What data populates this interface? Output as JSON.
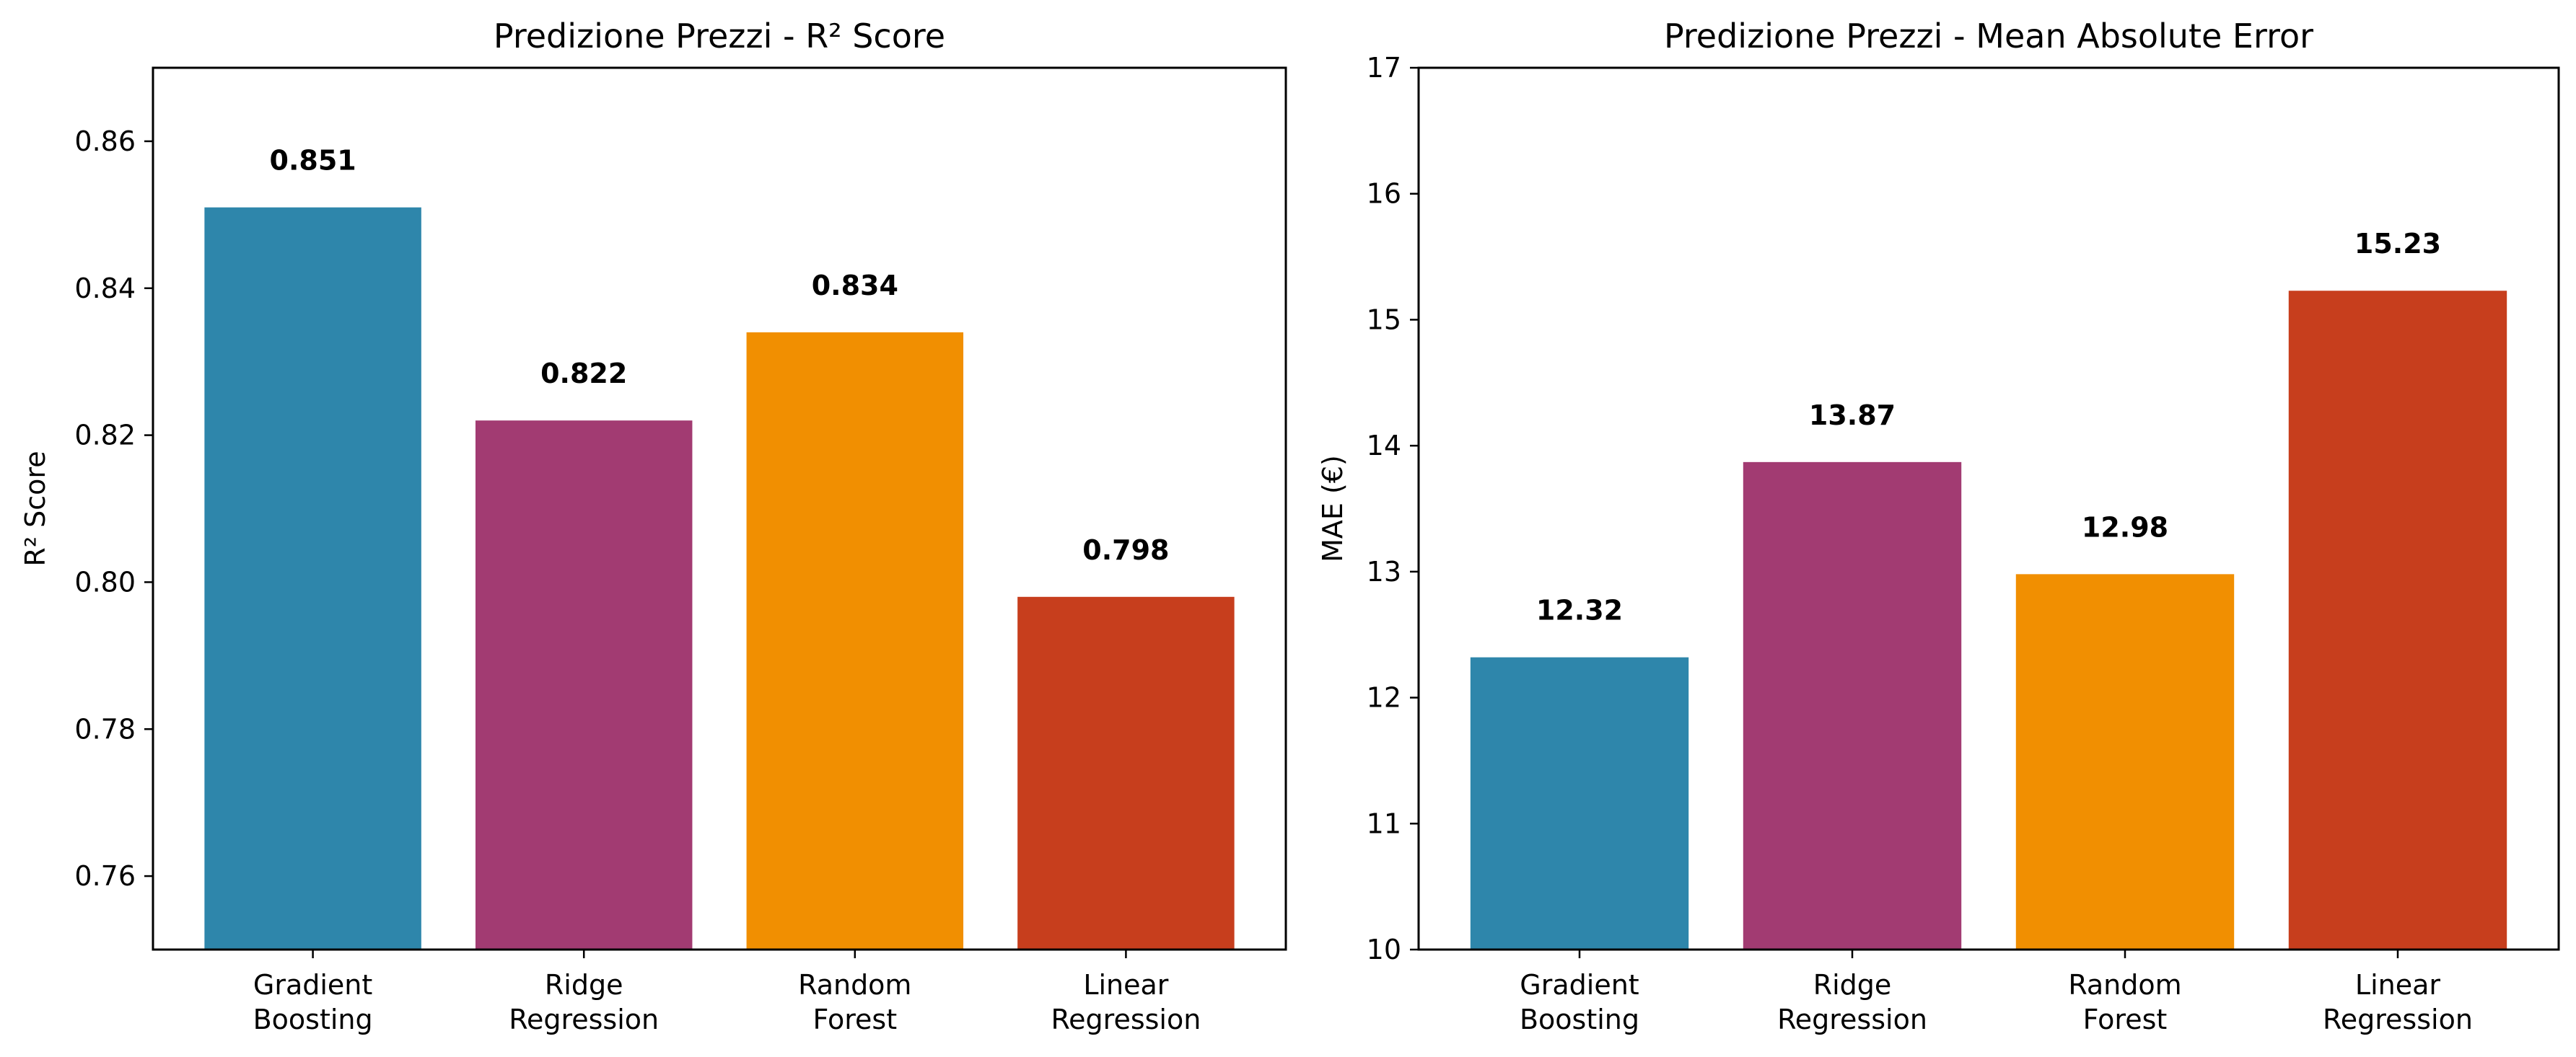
{
  "chart_data": [
    {
      "type": "bar",
      "title": "Predizione Prezzi - R² Score",
      "xlabel": "",
      "ylabel": "R² Score",
      "categories": [
        [
          "Gradient",
          "Boosting"
        ],
        [
          "Ridge",
          "Regression"
        ],
        [
          "Random",
          "Forest"
        ],
        [
          "Linear",
          "Regression"
        ]
      ],
      "values": [
        0.851,
        0.822,
        0.834,
        0.798
      ],
      "value_labels": [
        "0.851",
        "0.822",
        "0.834",
        "0.798"
      ],
      "colors": [
        "#2e86ab",
        "#a23b72",
        "#f18f01",
        "#c73e1d"
      ],
      "ylim": [
        0.75,
        0.87
      ],
      "yticks": [
        0.76,
        0.78,
        0.8,
        0.82,
        0.84,
        0.86
      ],
      "ytick_labels": [
        "0.76",
        "0.78",
        "0.80",
        "0.82",
        "0.84",
        "0.86"
      ],
      "grid": false,
      "legend": "none"
    },
    {
      "type": "bar",
      "title": "Predizione Prezzi - Mean Absolute Error",
      "xlabel": "",
      "ylabel": "MAE (€)",
      "categories": [
        [
          "Gradient",
          "Boosting"
        ],
        [
          "Ridge",
          "Regression"
        ],
        [
          "Random",
          "Forest"
        ],
        [
          "Linear",
          "Regression"
        ]
      ],
      "values": [
        12.32,
        13.87,
        12.98,
        15.23
      ],
      "value_labels": [
        "12.32",
        "13.87",
        "12.98",
        "15.23"
      ],
      "colors": [
        "#2e86ab",
        "#a23b72",
        "#f18f01",
        "#c73e1d"
      ],
      "ylim": [
        10,
        17
      ],
      "yticks": [
        10,
        11,
        12,
        13,
        14,
        15,
        16,
        17
      ],
      "ytick_labels": [
        "10",
        "11",
        "12",
        "13",
        "14",
        "15",
        "16",
        "17"
      ],
      "grid": false,
      "legend": "none"
    }
  ]
}
